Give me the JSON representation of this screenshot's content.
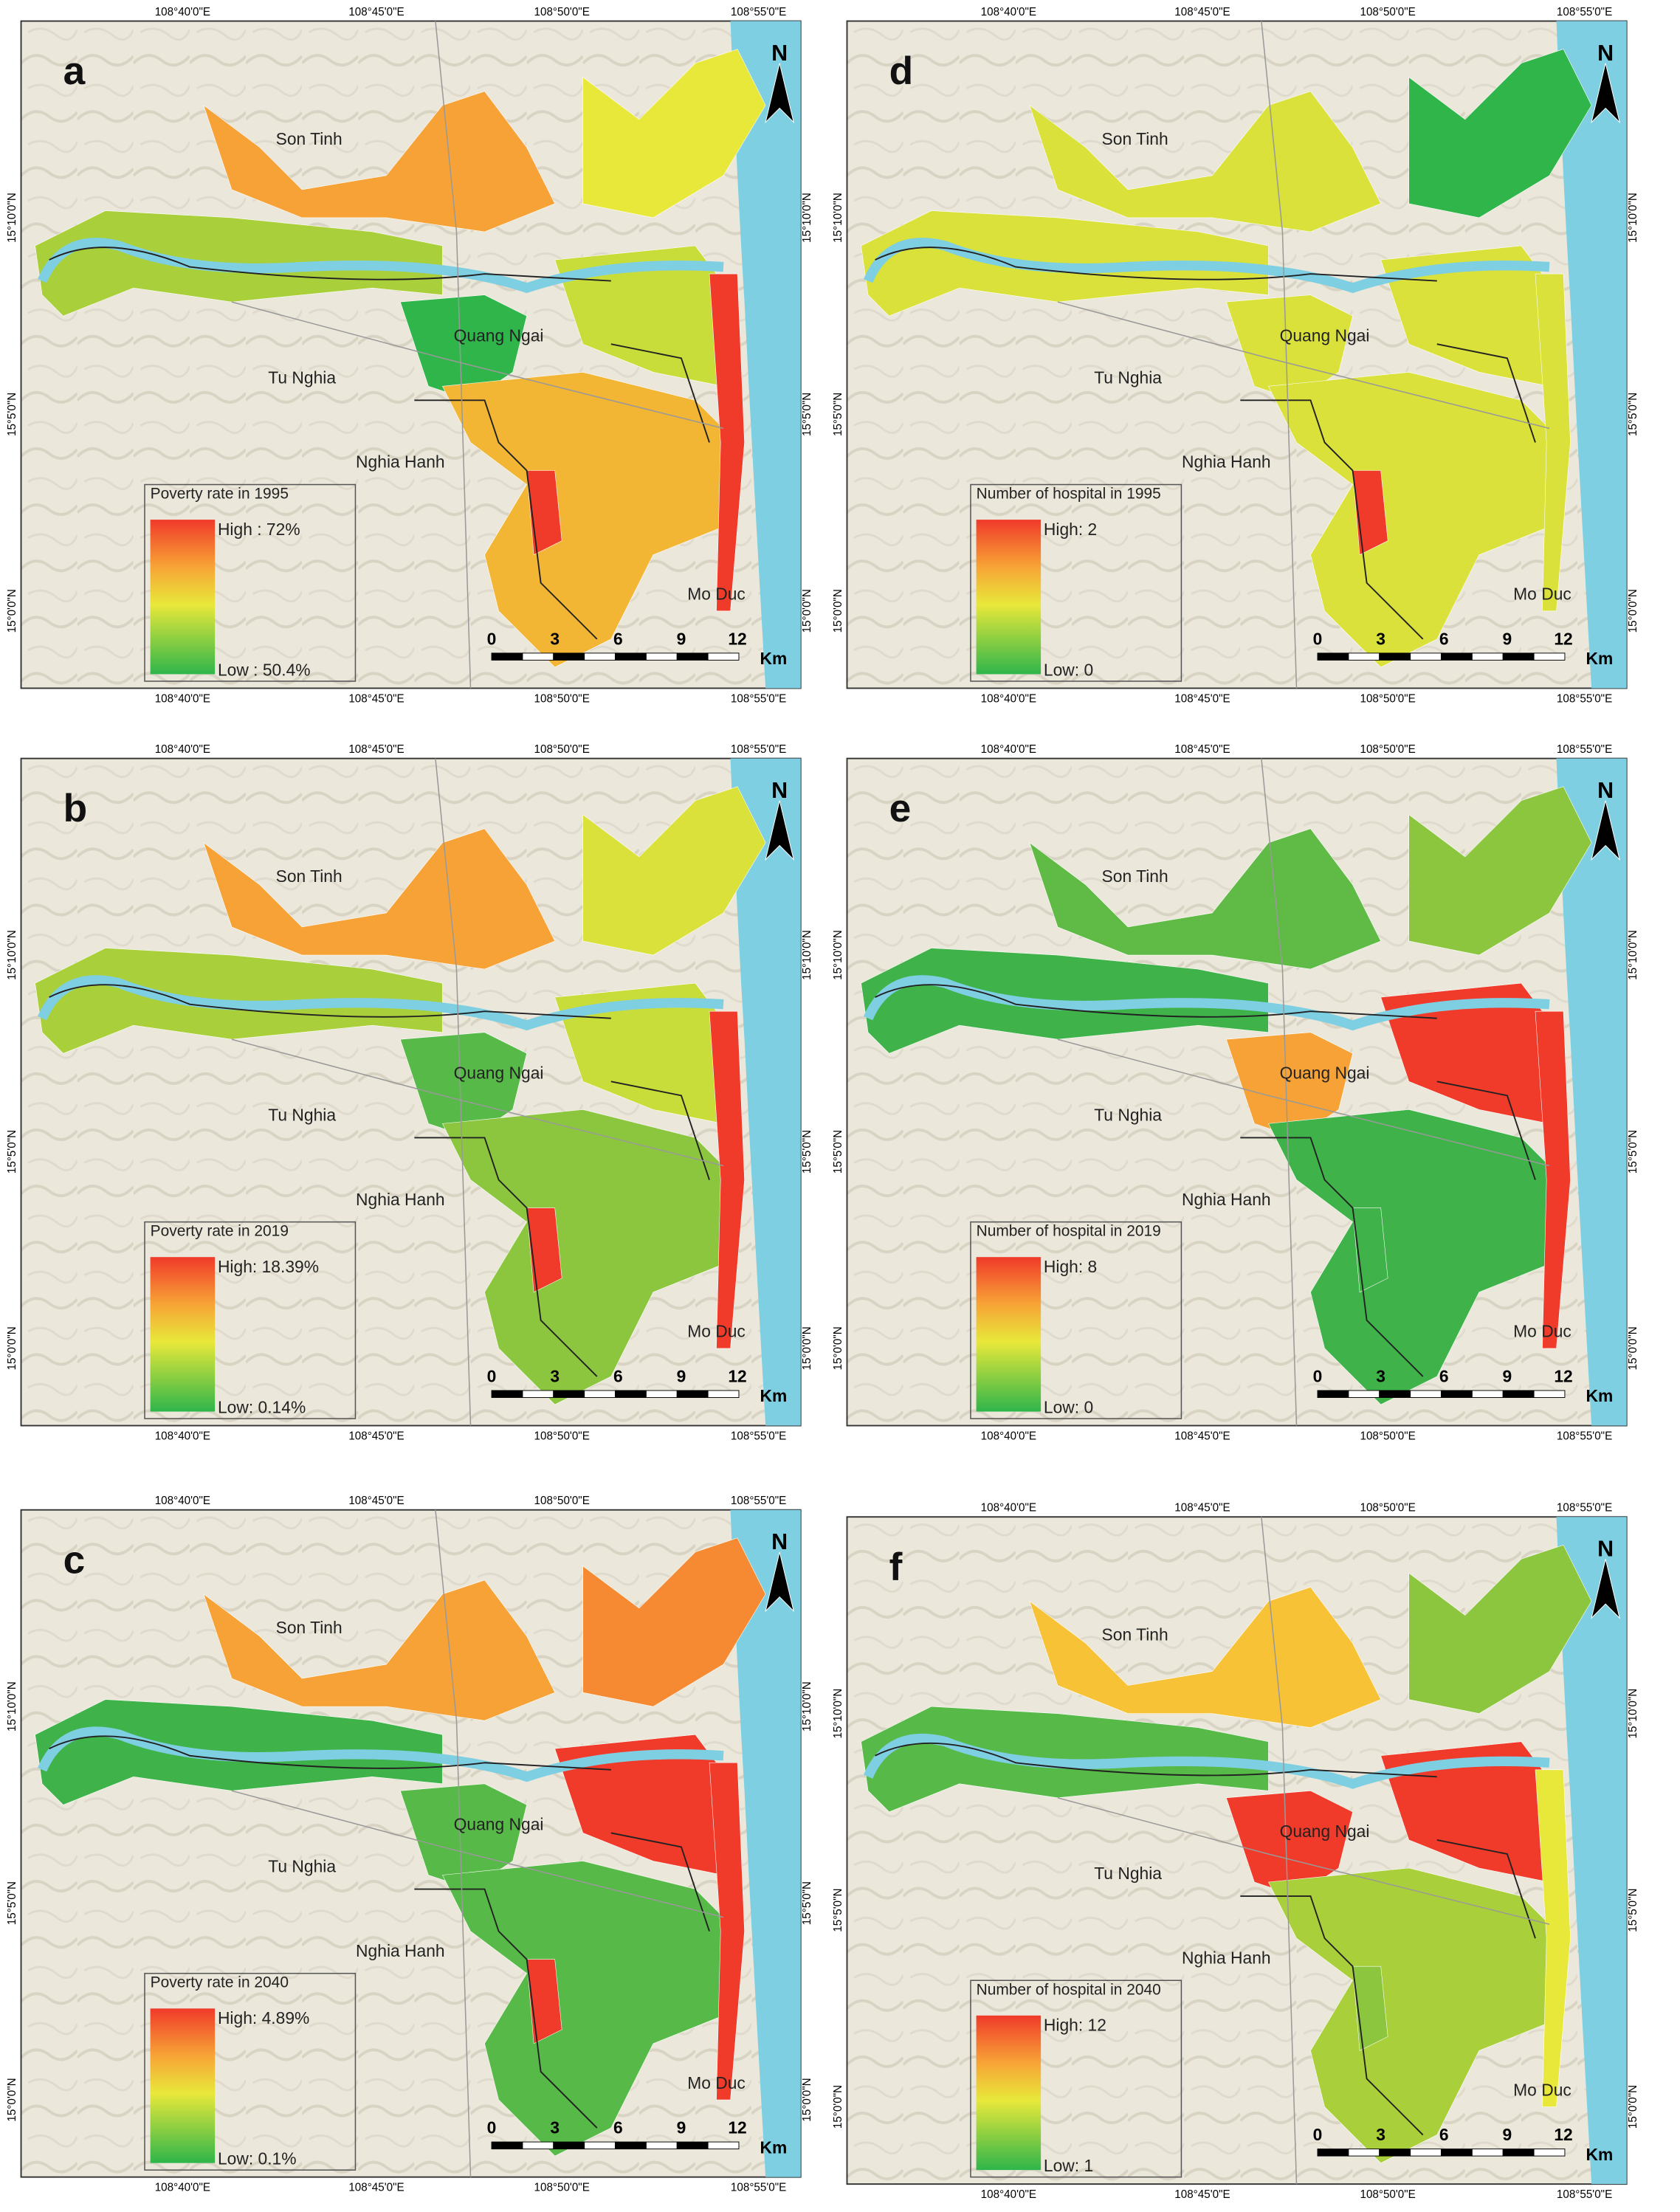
{
  "panels": [
    {
      "letter": "a",
      "legend_title": "Poverty rate in 1995",
      "legend_high": "High : 72%",
      "legend_low": "Low : 50.4%"
    },
    {
      "letter": "d",
      "legend_title": "Number of hospital in 1995",
      "legend_high": "High: 2",
      "legend_low": "Low: 0"
    },
    {
      "letter": "b",
      "legend_title": "Poverty rate in 2019",
      "legend_high": "High: 18.39%",
      "legend_low": "Low: 0.14%"
    },
    {
      "letter": "e",
      "legend_title": "Number of hospital in 2019",
      "legend_high": "High: 8",
      "legend_low": "Low: 0"
    },
    {
      "letter": "c",
      "legend_title": "Poverty rate in 2040",
      "legend_high": "High: 4.89%",
      "legend_low": "Low: 0.1%"
    },
    {
      "letter": "f",
      "legend_title": "Number of hospital in 2040",
      "legend_high": "High: 12",
      "legend_low": "Low: 1"
    }
  ],
  "lon_labels": [
    "108°40'0\"E",
    "108°45'0\"E",
    "108°50'0\"E",
    "108°55'0\"E"
  ],
  "lat_labels": [
    "15°10'0\"N",
    "15°5'0\"N",
    "15°0'0\"N"
  ],
  "place_labels": [
    "Son Tinh",
    "Quang Ngai",
    "Tu Nghia",
    "Nghia Hanh",
    "Mo Duc"
  ],
  "scale_labels": [
    "0",
    "3",
    "6",
    "9",
    "12",
    "Km"
  ],
  "north": "N"
}
